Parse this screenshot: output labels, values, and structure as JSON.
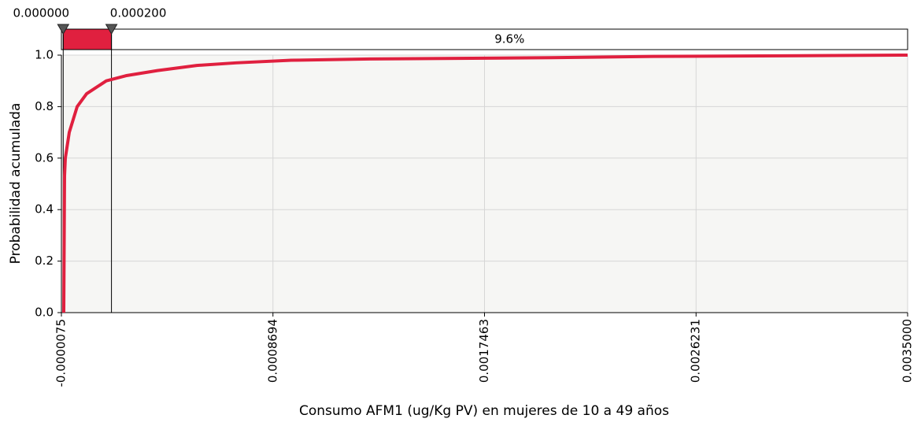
{
  "chart_data": {
    "type": "line",
    "xlabel": "Consumo AFM1 (ug/Kg PV) en mujeres de 10 a 49 años",
    "ylabel": "Probabilidad acumulada",
    "x": [
      2.3e-06,
      5.5e-06,
      8.8e-06,
      2.51e-05,
      5.78e-05,
      9.69e-05,
      0.0001785,
      0.00026,
      0.0003906,
      0.0005537,
      0.0007168,
      0.0009452,
      0.0012715,
      0.002022,
      0.0024461,
      0.0035
    ],
    "series": [
      {
        "color": "#e0203f",
        "values": [
          0,
          0.53,
          0.6,
          0.7,
          0.8,
          0.85,
          0.9,
          0.92,
          0.94,
          0.96,
          0.97,
          0.98,
          0.985,
          0.99,
          0.995,
          1.0
        ]
      }
    ],
    "xlim": [
      -7.5e-06,
      0.0035
    ],
    "xticks": [
      -7.5e-06,
      0.0008694,
      0.0017463,
      0.0026231,
      {
        "value": 0.0035,
        "label": "0.0035000"
      }
    ],
    "ylim": [
      0,
      1
    ],
    "yticks": [
      {
        "value": 0,
        "label": "0.0"
      },
      0.2,
      0.4,
      0.6,
      0.8,
      {
        "value": 1,
        "label": "1.0"
      }
    ],
    "grid": true,
    "delimiters": [
      {
        "value": 0,
        "label": "0.000000"
      },
      {
        "value": 0.0002,
        "label": "0.000200"
      }
    ],
    "region_right": {
      "value": 9.6,
      "label": "9.6%"
    }
  }
}
